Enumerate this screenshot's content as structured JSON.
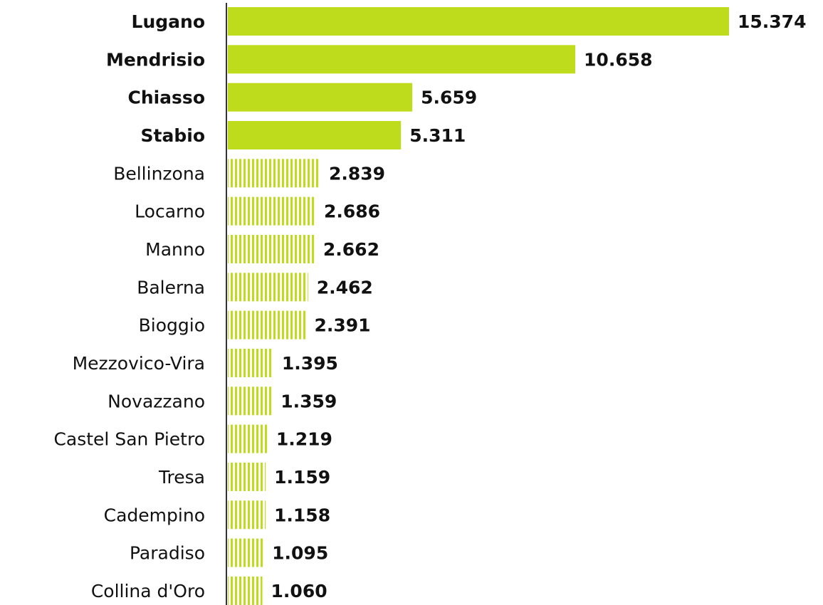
{
  "chart_data": {
    "type": "bar",
    "orientation": "horizontal",
    "categories": [
      "Lugano",
      "Mendrisio",
      "Chiasso",
      "Stabio",
      "Bellinzona",
      "Locarno",
      "Manno",
      "Balerna",
      "Bioggio",
      "Mezzovico-Vira",
      "Novazzano",
      "Castel San Pietro",
      "Tresa",
      "Cadempino",
      "Paradiso",
      "Collina d'Oro"
    ],
    "values": [
      15374,
      10658,
      5659,
      5311,
      2839,
      2686,
      2662,
      2462,
      2391,
      1395,
      1359,
      1219,
      1159,
      1158,
      1095,
      1060
    ],
    "value_labels": [
      "15.374",
      "10.658",
      "5.659",
      "5.311",
      "2.839",
      "2.686",
      "2.662",
      "2.462",
      "2.391",
      "1.395",
      "1.359",
      "1.219",
      "1.159",
      "1.158",
      "1.095",
      "1.060"
    ],
    "fill_styles": [
      "solid",
      "solid",
      "solid",
      "solid",
      "striped",
      "striped",
      "striped",
      "striped",
      "striped",
      "striped",
      "striped",
      "striped",
      "striped",
      "striped",
      "striped",
      "striped"
    ],
    "color": "#bedc1c",
    "xlim": [
      0,
      15374
    ]
  }
}
